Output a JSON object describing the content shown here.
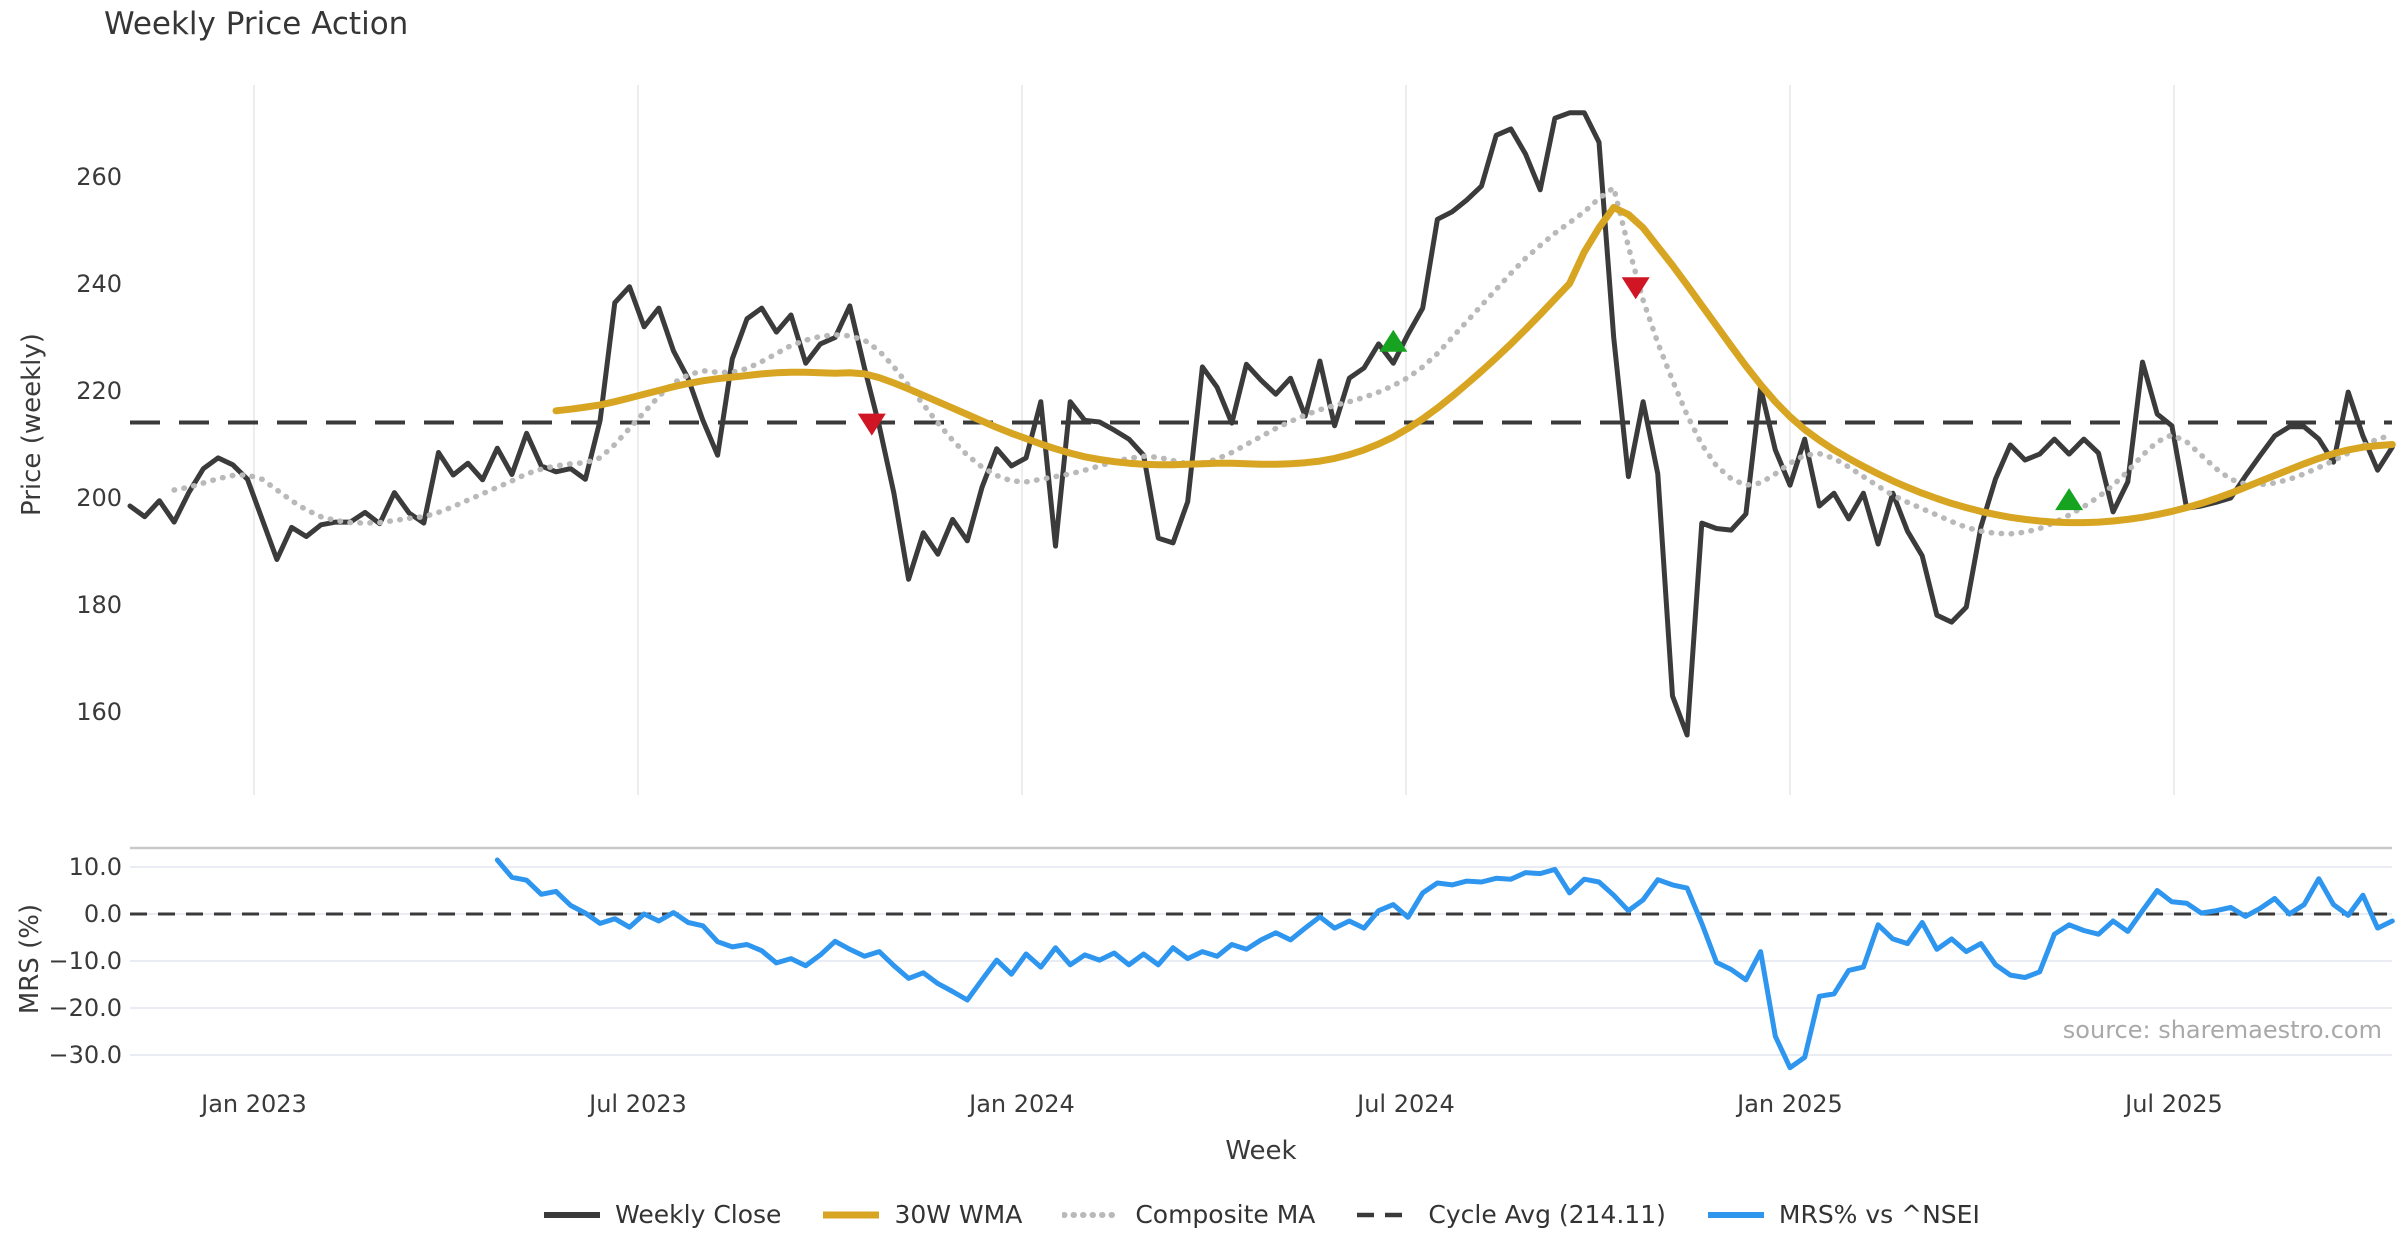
{
  "title": "Weekly Price Action",
  "source_note": "source: sharemaestro.com",
  "x_axis": {
    "label": "Week",
    "ticks": [
      {
        "label": "Jan 2023",
        "week": 8.44
      },
      {
        "label": "Jul 2023",
        "week": 34.58
      },
      {
        "label": "Jan 2024",
        "week": 60.72
      },
      {
        "label": "Jul 2024",
        "week": 86.86
      },
      {
        "label": "Jan 2025",
        "week": 113.0
      },
      {
        "label": "Jul 2025",
        "week": 139.14
      }
    ]
  },
  "price_axis": {
    "label": "Price (weekly)",
    "ticks": [
      260,
      240,
      220,
      200,
      180,
      160
    ]
  },
  "mrs_axis": {
    "label": "MRS (%)",
    "ticks": [
      {
        "label": "10.0",
        "value": 10
      },
      {
        "label": "0.0",
        "value": 0
      },
      {
        "label": "−10.0",
        "value": -10
      },
      {
        "label": "−20.0",
        "value": -20
      },
      {
        "label": "−30.0",
        "value": -30
      }
    ]
  },
  "legend": [
    {
      "label": "Weekly Close",
      "style": "solid",
      "color_key": "weekly_close"
    },
    {
      "label": "30W WMA",
      "style": "solid",
      "color_key": "wma30"
    },
    {
      "label": "Composite MA",
      "style": "dotted",
      "color_key": "composite_ma"
    },
    {
      "label": "Cycle Avg (214.11)",
      "style": "dashed",
      "color_key": "cycle_avg"
    },
    {
      "label": "MRS% vs ^NSEI",
      "style": "solid",
      "color_key": "mrs_pct"
    }
  ],
  "colors": {
    "weekly_close": "#3b3b3b",
    "wma30": "#d7a521",
    "composite_ma": "#b9b9b9",
    "cycle_avg": "#3a3a3a",
    "mrs_pct": "#2e96ef",
    "buy_marker": "#16a320",
    "sell_marker": "#d01524",
    "gridline": "#ededed",
    "mrs_gridline": "#e9edf3",
    "mrs_top_border": "#c9c9c9"
  },
  "chart_data": {
    "type": "line",
    "x_unit": "week_index",
    "title": "Weekly Price Action",
    "xlabel": "Week",
    "panels": [
      {
        "name": "price",
        "ylabel": "Price (weekly)",
        "ylim": [
          146,
          278
        ],
        "grid": "vertical"
      },
      {
        "name": "mrs",
        "ylabel": "MRS (%)",
        "ylim": [
          -33,
          14
        ],
        "grid": "horizontal"
      }
    ],
    "cycle_avg": 214.11,
    "mrs_zero_line": 0,
    "series": {
      "weekly_close": {
        "start_week": 0,
        "values": [
          198.5,
          196.5,
          199.5,
          195.5,
          201,
          205.5,
          207.5,
          206.2,
          203.5,
          196,
          188.5,
          194.5,
          192.8,
          195,
          195.5,
          195.5,
          197.3,
          195.2,
          201,
          197.2,
          195.3,
          208.5,
          204.3,
          206.5,
          203.4,
          209.3,
          204.4,
          212.1,
          206,
          204.9,
          205.5,
          203.5,
          214.5,
          236.5,
          239.5,
          232,
          235.5,
          227.5,
          222.3,
          214.5,
          208,
          226,
          233.5,
          235.5,
          231,
          234.2,
          225.2,
          228.8,
          230,
          235.9,
          224.3,
          213.5,
          200.9,
          184.8,
          193.5,
          189.5,
          196,
          192,
          202,
          209.2,
          206,
          207.5,
          218,
          191,
          218,
          214.5,
          214.2,
          212.7,
          211,
          208,
          192.5,
          191.6,
          199.3,
          224.5,
          220.7,
          214,
          225,
          222,
          219.4,
          222.4,
          215.3,
          225.6,
          213.5,
          222.4,
          224.3,
          228.8,
          225.2,
          230.6,
          235.5,
          252.1,
          253.5,
          255.7,
          258.3,
          267.8,
          269,
          264.3,
          257.6,
          271,
          272,
          272,
          266.5,
          230,
          204,
          218,
          204.5,
          163,
          155.7,
          195.3,
          194.3,
          194,
          197,
          220.6,
          209,
          202.4,
          211,
          198.5,
          200.9,
          196.1,
          200.9,
          191.4,
          200.9,
          193.8,
          189.2,
          178.1,
          176.8,
          179.6,
          194.6,
          203.6,
          209.9,
          207.1,
          208.2,
          211,
          208.2,
          211,
          208.4,
          197.4,
          203,
          225.4,
          215.7,
          213.5,
          198.1,
          198.5,
          199.2,
          200,
          204.1,
          207.9,
          211.6,
          213.3,
          213.3,
          211,
          206.7,
          219.8,
          211.6,
          205.2,
          209.5
        ]
      },
      "wma30": {
        "start_week": 29,
        "values": [
          216.3,
          216.6,
          217,
          217.4,
          218,
          218.7,
          219.4,
          220.1,
          220.8,
          221.4,
          221.9,
          222.3,
          222.6,
          222.9,
          223.2,
          223.4,
          223.5,
          223.5,
          223.4,
          223.3,
          223.4,
          223.2,
          222.5,
          221.5,
          220.4,
          219.2,
          218,
          216.8,
          215.6,
          214.4,
          213.2,
          212.1,
          211.1,
          210.1,
          209.2,
          208.4,
          207.7,
          207.2,
          206.8,
          206.5,
          206.3,
          206.2,
          206.2,
          206.3,
          206.4,
          206.5,
          206.5,
          206.4,
          206.3,
          206.3,
          206.4,
          206.6,
          206.9,
          207.4,
          208.1,
          209,
          210.1,
          211.4,
          213,
          214.8,
          216.8,
          219,
          221.3,
          223.7,
          226.2,
          228.8,
          231.5,
          234.3,
          237.2,
          240.1,
          246,
          250.5,
          254.3,
          253,
          250.5,
          247,
          243.5,
          239.8,
          236,
          232.2,
          228.4,
          224.7,
          221.2,
          218,
          215.2,
          212.8,
          210.8,
          209,
          207.4,
          205.9,
          204.5,
          203.2,
          202,
          200.9,
          199.9,
          199,
          198.2,
          197.5,
          196.9,
          196.4,
          196,
          195.7,
          195.5,
          195.4,
          195.4,
          195.5,
          195.7,
          196,
          196.4,
          196.9,
          197.5,
          198.2,
          199,
          199.9,
          200.9,
          202,
          203.1,
          204.2,
          205.3,
          206.4,
          207.4,
          208.3,
          209,
          209.5,
          209.8,
          210
        ]
      },
      "composite_ma": {
        "start_week": 3,
        "values": [
          201.5,
          202,
          202.8,
          203.6,
          204.2,
          204.3,
          203.5,
          201.5,
          199.5,
          197.8,
          196.5,
          195.8,
          195.4,
          195.3,
          195.4,
          195.8,
          196.2,
          196.5,
          197.3,
          198.4,
          199.6,
          200.8,
          202,
          203.2,
          204.5,
          205.4,
          206,
          206.4,
          206.6,
          207.5,
          210,
          213,
          216,
          219,
          221.5,
          223,
          223.8,
          223.5,
          223.5,
          224.2,
          225.5,
          227,
          228.5,
          229.5,
          230.2,
          230.5,
          230.3,
          229.5,
          227.5,
          224.5,
          221,
          217.5,
          214,
          210.8,
          208,
          205.8,
          204.2,
          203.2,
          203,
          203.5,
          204,
          204.5,
          205.2,
          206,
          206.8,
          207.4,
          207.8,
          207.6,
          207,
          206.4,
          206.5,
          207.3,
          208.5,
          210,
          211.5,
          213,
          214.3,
          215.5,
          216.5,
          217.3,
          218,
          218.8,
          219.8,
          221,
          222.5,
          224.5,
          227,
          230,
          233,
          236,
          239,
          242,
          244.8,
          247.2,
          249.5,
          251.5,
          253.5,
          256,
          258,
          247,
          237,
          229,
          222,
          215.5,
          210,
          206,
          203.6,
          202.4,
          202.8,
          204.5,
          206.5,
          208,
          208.3,
          207.4,
          205.8,
          204,
          202.2,
          200.5,
          199.2,
          198,
          196.8,
          195.6,
          194.5,
          193.8,
          193.4,
          193.3,
          193.6,
          194.3,
          195.4,
          196.8,
          198.4,
          200.2,
          202.4,
          205,
          208,
          210.5,
          211.8,
          210.5,
          208,
          205.5,
          203.5,
          202.6,
          202.5,
          202.8,
          203.5,
          204.5,
          205.7,
          207,
          208.4,
          209.8,
          211,
          211.8
        ]
      },
      "mrs_pct": {
        "start_week": 25,
        "values": [
          11.5,
          7.8,
          7.2,
          4.2,
          4.8,
          1.8,
          0.2,
          -2,
          -1,
          -2.8,
          0,
          -1.5,
          0.3,
          -1.8,
          -2.5,
          -5.9,
          -7,
          -6.5,
          -7.8,
          -10.4,
          -9.5,
          -11,
          -8.7,
          -5.8,
          -7.5,
          -9,
          -8,
          -11,
          -13.7,
          -12.5,
          -14.8,
          -16.5,
          -18.3,
          -14,
          -9.8,
          -12.8,
          -8.5,
          -11.3,
          -7.2,
          -10.8,
          -8.7,
          -9.8,
          -8.3,
          -10.8,
          -8.5,
          -10.8,
          -7.2,
          -9.5,
          -8,
          -9,
          -6.5,
          -7.5,
          -5.5,
          -4,
          -5.5,
          -3,
          -0.6,
          -3,
          -1.5,
          -3,
          0.7,
          2,
          -0.7,
          4.5,
          6.6,
          6.2,
          7,
          6.8,
          7.6,
          7.4,
          8.8,
          8.6,
          9.5,
          4.5,
          7.4,
          6.8,
          4,
          0.7,
          3,
          7.3,
          6.2,
          5.5,
          -2,
          -10.3,
          -11.8,
          -14,
          -8,
          -26,
          -32.7,
          -30.5,
          -17.5,
          -17,
          -12,
          -11.3,
          -2.3,
          -5.3,
          -6.3,
          -1.8,
          -7.5,
          -5.3,
          -8,
          -6.3,
          -10.8,
          -13,
          -13.5,
          -12.3,
          -4.3,
          -2.3,
          -3.5,
          -4.3,
          -1.5,
          -3.7,
          0.7,
          5,
          2.6,
          2.3,
          0.2,
          0.7,
          1.4,
          -0.5,
          1.2,
          3.3,
          0,
          2,
          7.5,
          2,
          -0.3,
          4,
          -3,
          -1.5
        ]
      }
    },
    "markers": {
      "sell": [
        {
          "week": 50.5,
          "price": 213.9
        },
        {
          "week": 102.5,
          "price": 239.4
        }
      ],
      "buy": [
        {
          "week": 86,
          "price": 229.2
        },
        {
          "week": 132,
          "price": 199.6
        }
      ]
    }
  }
}
